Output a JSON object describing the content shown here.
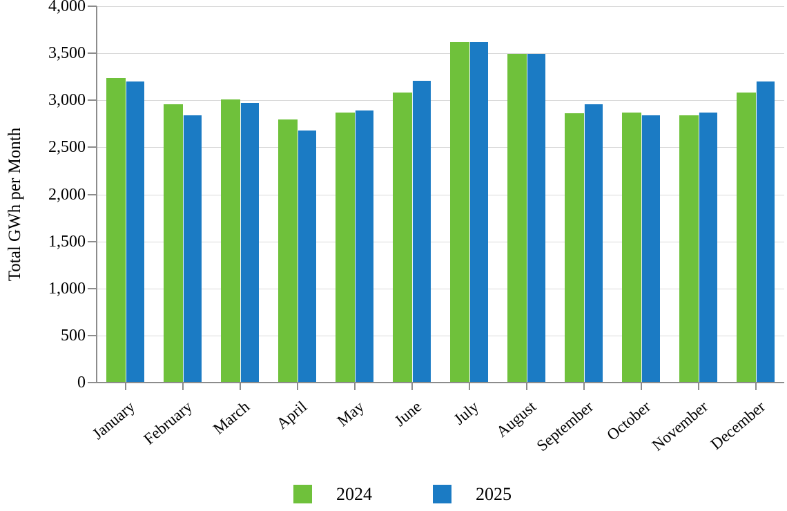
{
  "page": {
    "background": "#FFFFFF"
  },
  "chart_data": {
    "type": "bar",
    "title": "",
    "ylabel": "Total GWh per Month",
    "xlabel": "",
    "categories": [
      "January",
      "February",
      "March",
      "April",
      "May",
      "June",
      "July",
      "August",
      "September",
      "October",
      "November",
      "December"
    ],
    "series": [
      {
        "name": "2024",
        "color": "#6FC13B",
        "values": [
          3240,
          2960,
          3010,
          2800,
          2870,
          3080,
          3620,
          3490,
          2860,
          2870,
          2840,
          3080
        ]
      },
      {
        "name": "2025",
        "color": "#1B7BC4",
        "values": [
          3200,
          2840,
          2970,
          2680,
          2890,
          3210,
          3620,
          3490,
          2960,
          2840,
          2870,
          3200
        ]
      }
    ],
    "ylim": [
      0,
      4000
    ],
    "ytick_step": 500,
    "ytick_labels": [
      "0",
      "500",
      "1,000",
      "1,500",
      "2,000",
      "2,500",
      "3,000",
      "3,500",
      "4,000"
    ],
    "grid": true,
    "gridline_color": "#D9D9D9",
    "axis_color": "#8C8C8C",
    "text_color": "#000000",
    "legend_position": "bottom",
    "x_label_rotation_deg": -40
  }
}
